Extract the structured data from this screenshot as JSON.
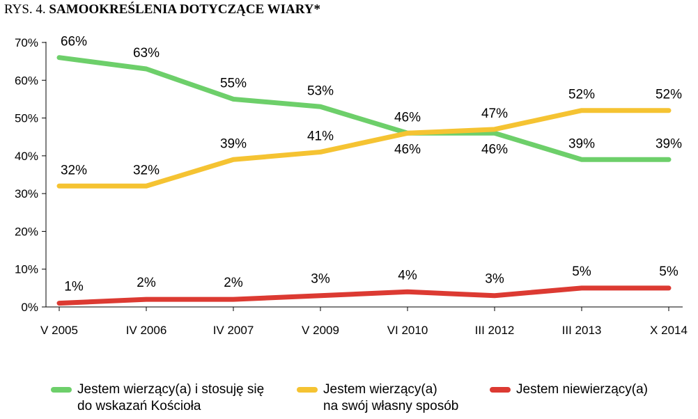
{
  "figure": {
    "prefix": "RYS. 4.",
    "title": "SAMOOKREŚLENIA DOTYCZĄCE WIARY*"
  },
  "chart_data": {
    "type": "line",
    "categories": [
      "V 2005",
      "IV 2006",
      "IV 2007",
      "V 2009",
      "VI 2010",
      "III 2012",
      "III 2013",
      "X 2014"
    ],
    "ylim": [
      0,
      70
    ],
    "yticks": [
      0,
      10,
      20,
      30,
      40,
      50,
      60,
      70
    ],
    "ytick_labels": [
      "0%",
      "10%",
      "20%",
      "30%",
      "40%",
      "50%",
      "60%",
      "70%"
    ],
    "grid": false,
    "legend_position": "bottom",
    "series": [
      {
        "name_lines": [
          "Jestem wierzący(a) i stosuję się",
          "do wskazań Kościoła"
        ],
        "color": "#6dcf6a",
        "values": [
          66,
          63,
          55,
          53,
          46,
          46,
          39,
          39
        ],
        "labels": [
          "66%",
          "63%",
          "55%",
          "53%",
          "46%",
          "46%",
          "39%",
          "39%"
        ]
      },
      {
        "name_lines": [
          "Jestem wierzący(a)",
          "na swój własny sposób"
        ],
        "color": "#f5c332",
        "values": [
          32,
          32,
          39,
          41,
          46,
          47,
          52,
          52
        ],
        "labels": [
          "32%",
          "32%",
          "39%",
          "41%",
          "46%",
          "47%",
          "52%",
          "52%"
        ]
      },
      {
        "name_lines": [
          "Jestem niewierzący(a)"
        ],
        "color": "#dc3a32",
        "values": [
          1,
          2,
          2,
          3,
          4,
          3,
          5,
          5
        ],
        "labels": [
          "1%",
          "2%",
          "2%",
          "3%",
          "4%",
          "3%",
          "5%",
          "5%"
        ]
      }
    ]
  }
}
